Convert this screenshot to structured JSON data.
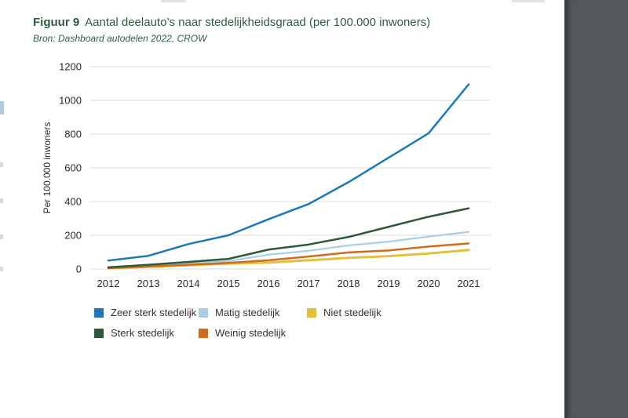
{
  "page": {
    "background": "#ffffff",
    "right_panel_color": "#55585a",
    "accent_green": "#2d5c3e"
  },
  "figure": {
    "label": "Figuur 9",
    "title": "Aantal deelauto’s naar stedelijkheidsgraad (per 100.000 inwoners)",
    "source": "Bron: Dashboard autodelen 2022, CROW"
  },
  "chart_data": {
    "type": "line",
    "x": [
      2012,
      2013,
      2014,
      2015,
      2016,
      2017,
      2018,
      2019,
      2020,
      2021
    ],
    "xtick_labels": [
      "2012",
      "2013",
      "2014",
      "2015",
      "2016",
      "2017",
      "2018",
      "2019",
      "2020",
      "2021"
    ],
    "ylabel": "Per 100.000 inwoners",
    "xlabel": "",
    "ylim": [
      0,
      1200
    ],
    "ytick_step": 200,
    "yticks": [
      0,
      200,
      400,
      600,
      800,
      1000,
      1200
    ],
    "grid": true,
    "grid_color": "#d9d9d9",
    "tick_text_color": "#2b2b2b",
    "legend_position": "bottom",
    "series": [
      {
        "name": "Zeer sterk stedelijk",
        "color": "#1c79b8",
        "width": 2.5,
        "values": [
          50,
          78,
          148,
          200,
          295,
          385,
          515,
          660,
          805,
          1095
        ]
      },
      {
        "name": "Sterk stedelijk",
        "color": "#2d5839",
        "width": 2.5,
        "values": [
          10,
          25,
          42,
          60,
          115,
          145,
          190,
          250,
          310,
          360
        ]
      },
      {
        "name": "Matig stedelijk",
        "color": "#a6cfe5",
        "width": 2.2,
        "values": [
          8,
          18,
          34,
          46,
          85,
          108,
          140,
          162,
          192,
          220
        ]
      },
      {
        "name": "Weinig stedelijk",
        "color": "#cf6c1c",
        "width": 2.5,
        "values": [
          5,
          15,
          25,
          36,
          52,
          74,
          98,
          110,
          133,
          152
        ]
      },
      {
        "name": "Niet stedelijk",
        "color": "#e2c03c",
        "width": 3,
        "values": [
          4,
          13,
          22,
          32,
          38,
          52,
          66,
          76,
          92,
          113
        ]
      }
    ],
    "legend_order": [
      0,
      2,
      4,
      1,
      3
    ],
    "draw_order": [
      2,
      4,
      3,
      1,
      0
    ]
  }
}
